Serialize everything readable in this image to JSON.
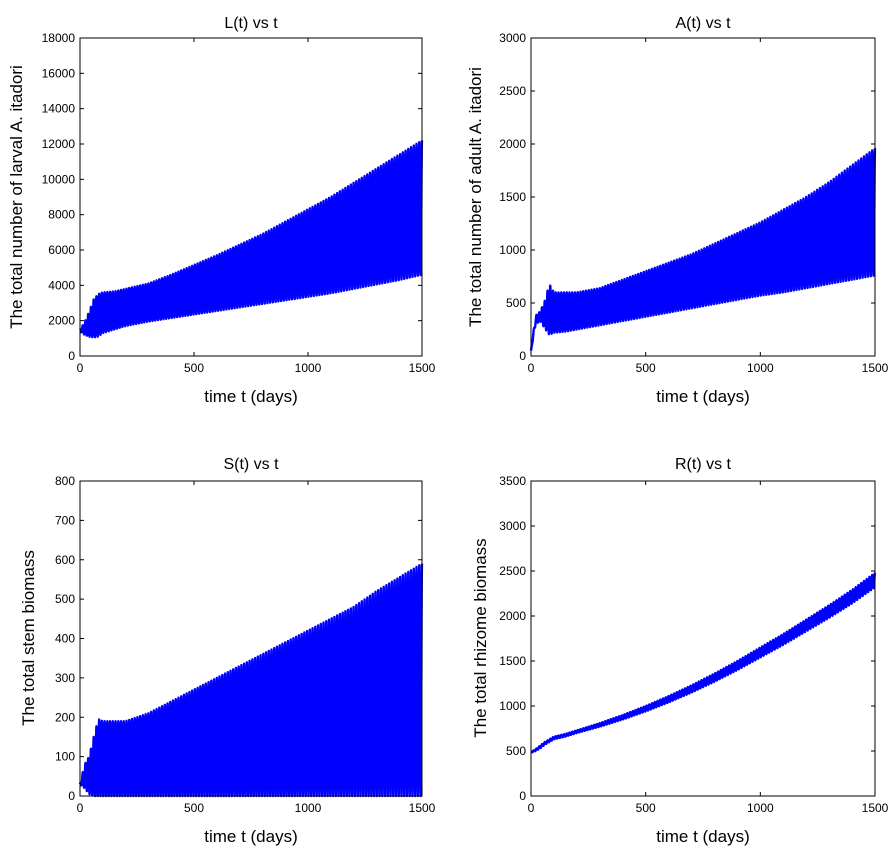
{
  "chart_data": [
    {
      "type": "line",
      "title": "L(t) vs t",
      "xlabel": "time t (days)",
      "ylabel": "The total number of larval A. itadori",
      "xlim": [
        0,
        1500
      ],
      "ylim": [
        0,
        18000
      ],
      "xticks": [
        0,
        500,
        1000,
        1500
      ],
      "yticks": [
        0,
        2000,
        4000,
        6000,
        8000,
        10000,
        12000,
        14000,
        16000,
        18000
      ],
      "color": "#0000ff",
      "series": [
        {
          "x": [
            0,
            20,
            40,
            60,
            80,
            100,
            150,
            200,
            300,
            400,
            500,
            600,
            700,
            800,
            900,
            1000,
            1100,
            1200,
            1300,
            1400,
            1500
          ],
          "upper": [
            1500,
            1900,
            2500,
            3200,
            3500,
            3600,
            3650,
            3800,
            4100,
            4600,
            5150,
            5700,
            6300,
            6900,
            7600,
            8300,
            9000,
            9800,
            10600,
            11400,
            12200
          ],
          "lower": [
            1400,
            1200,
            1100,
            1050,
            1100,
            1300,
            1500,
            1700,
            1950,
            2150,
            2350,
            2550,
            2750,
            2950,
            3150,
            3350,
            3550,
            3800,
            4050,
            4300,
            4600
          ],
          "period": 12
        }
      ]
    },
    {
      "type": "line",
      "title": "A(t) vs t",
      "xlabel": "time t (days)",
      "ylabel": "The total number of adult A. itadori",
      "xlim": [
        0,
        1500
      ],
      "ylim": [
        0,
        3000
      ],
      "xticks": [
        0,
        500,
        1000,
        1500
      ],
      "yticks": [
        0,
        500,
        1000,
        1500,
        2000,
        2500,
        3000
      ],
      "color": "#0000ff",
      "series": [
        {
          "x": [
            0,
            20,
            40,
            60,
            80,
            100,
            150,
            200,
            300,
            400,
            500,
            600,
            700,
            800,
            900,
            1000,
            1100,
            1200,
            1300,
            1400,
            1500
          ],
          "upper": [
            50,
            380,
            420,
            520,
            680,
            600,
            600,
            600,
            640,
            720,
            800,
            880,
            960,
            1060,
            1160,
            1260,
            1380,
            1500,
            1640,
            1800,
            1960
          ],
          "lower": [
            50,
            300,
            330,
            260,
            200,
            220,
            230,
            250,
            290,
            330,
            370,
            410,
            450,
            490,
            530,
            570,
            600,
            640,
            680,
            720,
            760
          ],
          "period": 12
        }
      ]
    },
    {
      "type": "line",
      "title": "S(t) vs t",
      "xlabel": "time t (days)",
      "ylabel": "The total stem biomass",
      "xlim": [
        0,
        1500
      ],
      "ylim": [
        0,
        800
      ],
      "xticks": [
        0,
        500,
        1000,
        1500
      ],
      "yticks": [
        0,
        100,
        200,
        300,
        400,
        500,
        600,
        700,
        800
      ],
      "color": "#0000ff",
      "series": [
        {
          "x": [
            0,
            20,
            40,
            60,
            80,
            100,
            150,
            200,
            300,
            400,
            500,
            600,
            700,
            800,
            900,
            1000,
            1100,
            1200,
            1300,
            1400,
            1500
          ],
          "upper": [
            30,
            80,
            100,
            150,
            195,
            190,
            190,
            190,
            210,
            240,
            270,
            300,
            330,
            360,
            390,
            420,
            450,
            480,
            520,
            555,
            590
          ],
          "lower": [
            30,
            20,
            5,
            0,
            0,
            0,
            0,
            0,
            0,
            0,
            0,
            0,
            0,
            0,
            0,
            0,
            0,
            0,
            0,
            0,
            0
          ],
          "period": 12
        }
      ]
    },
    {
      "type": "line",
      "title": "R(t) vs t",
      "xlabel": "time t (days)",
      "ylabel": "The total rhizome biomass",
      "xlim": [
        0,
        1500
      ],
      "ylim": [
        0,
        3500
      ],
      "xticks": [
        0,
        500,
        1000,
        1500
      ],
      "yticks": [
        0,
        500,
        1000,
        1500,
        2000,
        2500,
        3000,
        3500
      ],
      "color": "#0000ff",
      "series": [
        {
          "x": [
            0,
            20,
            40,
            60,
            80,
            100,
            150,
            200,
            300,
            400,
            500,
            600,
            700,
            800,
            900,
            1000,
            1100,
            1200,
            1300,
            1400,
            1500
          ],
          "upper": [
            490,
            520,
            560,
            600,
            630,
            660,
            690,
            730,
            810,
            900,
            1000,
            1110,
            1230,
            1360,
            1500,
            1650,
            1800,
            1960,
            2120,
            2290,
            2480
          ],
          "lower": [
            480,
            500,
            530,
            570,
            600,
            630,
            660,
            700,
            770,
            850,
            940,
            1040,
            1150,
            1270,
            1400,
            1540,
            1680,
            1830,
            1980,
            2140,
            2320
          ],
          "period": 12
        }
      ]
    }
  ]
}
